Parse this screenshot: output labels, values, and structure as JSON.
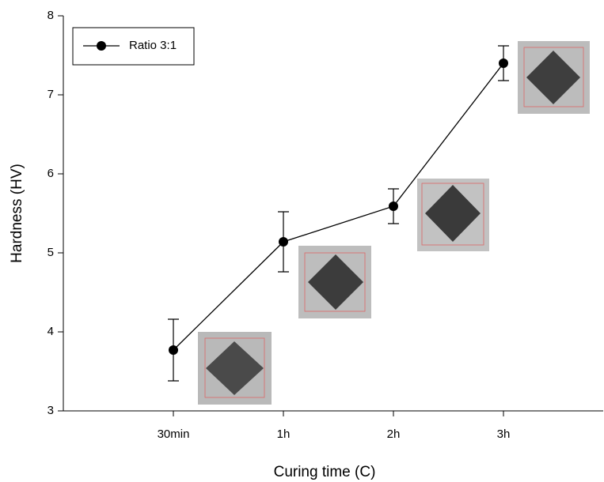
{
  "chart_data": {
    "type": "line",
    "x_label": "Curing time (C)",
    "y_label": "Hardness (HV)",
    "categories": [
      "30min",
      "1h",
      "2h",
      "3h"
    ],
    "series": [
      {
        "name": "Ratio 3:1",
        "color": "#000000",
        "values": [
          3.77,
          5.14,
          5.59,
          7.4
        ],
        "errors": [
          0.39,
          0.38,
          0.22,
          0.22
        ]
      }
    ],
    "ylim": [
      3,
      8
    ],
    "yticks": [
      3,
      4,
      5,
      6,
      7,
      8
    ],
    "legend": "upper left"
  }
}
